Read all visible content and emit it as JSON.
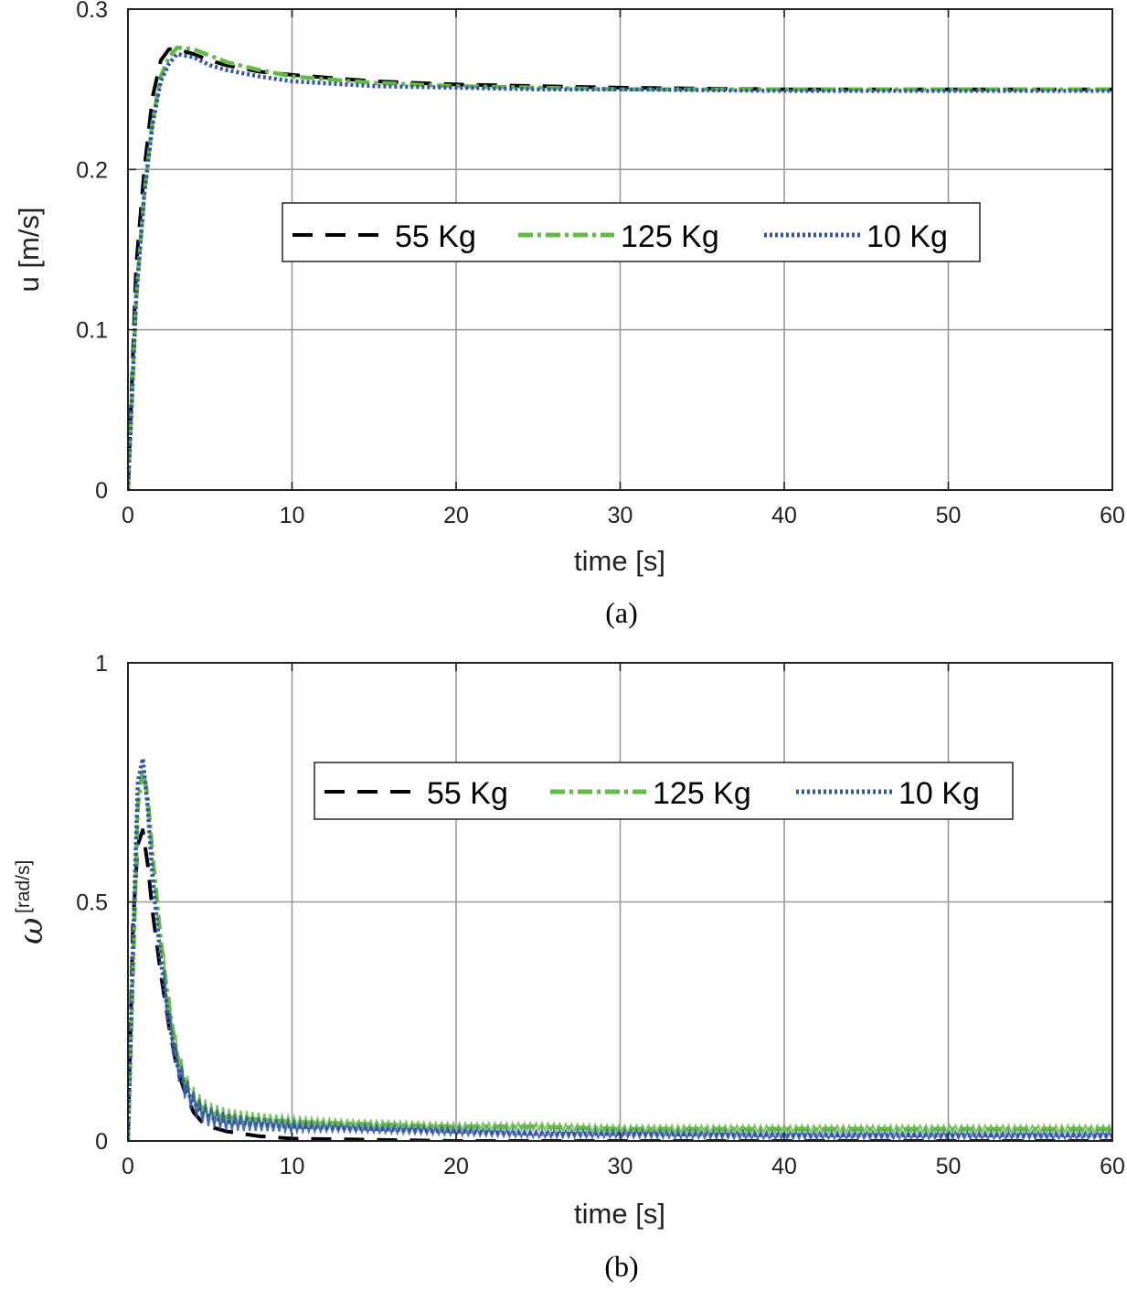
{
  "colors": {
    "55 Kg": "#000000",
    "125 Kg": "#62bb45",
    "10 Kg": "#3355a8",
    "grid": "#9a9a9a"
  },
  "chart_data": [
    {
      "type": "line",
      "panel": "(a)",
      "xlabel": "time [s]",
      "ylabel": "u [m/s]",
      "xlim": [
        0,
        60
      ],
      "ylim": [
        0,
        0.3
      ],
      "xticks": [
        "0",
        "10",
        "20",
        "30",
        "40",
        "50",
        "60"
      ],
      "yticks": [
        "0",
        "0.1",
        "0.2",
        "0.3"
      ],
      "grid": true,
      "legend": "center-right",
      "series": [
        {
          "name": "55 Kg",
          "style": "dashed",
          "x": [
            0,
            0.5,
            1,
            1.5,
            2,
            2.5,
            3,
            4,
            5,
            6,
            8,
            10,
            15,
            20,
            25,
            30,
            40,
            50,
            60
          ],
          "y": [
            0,
            0.14,
            0.2,
            0.245,
            0.268,
            0.275,
            0.275,
            0.272,
            0.268,
            0.265,
            0.261,
            0.259,
            0.255,
            0.253,
            0.252,
            0.251,
            0.25,
            0.25,
            0.25
          ]
        },
        {
          "name": "125 Kg",
          "style": "dashdot",
          "x": [
            0,
            0.5,
            1,
            1.5,
            2,
            2.5,
            3,
            4,
            5,
            6,
            8,
            10,
            15,
            20,
            25,
            30,
            40,
            50,
            60
          ],
          "y": [
            0,
            0.12,
            0.185,
            0.23,
            0.258,
            0.27,
            0.276,
            0.275,
            0.271,
            0.267,
            0.262,
            0.258,
            0.254,
            0.252,
            0.251,
            0.25,
            0.25,
            0.25,
            0.25
          ]
        },
        {
          "name": "10 Kg",
          "style": "dotted",
          "x": [
            0,
            0.5,
            1,
            1.5,
            2,
            2.5,
            3,
            4,
            5,
            6,
            8,
            10,
            15,
            20,
            25,
            30,
            40,
            50,
            60
          ],
          "y": [
            0,
            0.12,
            0.185,
            0.228,
            0.255,
            0.266,
            0.272,
            0.27,
            0.265,
            0.262,
            0.258,
            0.255,
            0.252,
            0.251,
            0.25,
            0.25,
            0.249,
            0.249,
            0.249
          ]
        }
      ]
    },
    {
      "type": "line",
      "panel": "(b)",
      "xlabel": "time [s]",
      "ylabel": "ω [rad/s]",
      "xlim": [
        0,
        60
      ],
      "ylim": [
        0,
        1
      ],
      "xticks": [
        "0",
        "10",
        "20",
        "30",
        "40",
        "50",
        "60"
      ],
      "yticks": [
        "0",
        "0.5",
        "1"
      ],
      "grid": true,
      "legend": "center-right",
      "series": [
        {
          "name": "55 Kg",
          "style": "dashed",
          "x": [
            0,
            0.3,
            0.6,
            0.9,
            1.2,
            1.5,
            2,
            2.5,
            3,
            3.5,
            4,
            4.5,
            5,
            5.5,
            6,
            8,
            10,
            20,
            30,
            40,
            50,
            60
          ],
          "y": [
            0,
            0.45,
            0.62,
            0.65,
            0.58,
            0.48,
            0.35,
            0.24,
            0.15,
            0.1,
            0.06,
            0.04,
            0.03,
            0.025,
            0.02,
            0.01,
            0.005,
            0.0,
            0.0,
            0.0,
            0.0,
            0.0
          ]
        },
        {
          "name": "125 Kg",
          "style": "dashdot",
          "band": 0.03,
          "x": [
            0,
            0.3,
            0.6,
            0.9,
            1.2,
            1.5,
            2,
            2.5,
            3,
            3.5,
            4,
            4.5,
            5,
            6,
            8,
            10,
            15,
            20,
            25,
            30,
            40,
            50,
            60
          ],
          "y": [
            0,
            0.35,
            0.7,
            0.78,
            0.72,
            0.6,
            0.42,
            0.28,
            0.18,
            0.12,
            0.09,
            0.07,
            0.06,
            0.05,
            0.045,
            0.04,
            0.035,
            0.03,
            0.03,
            0.025,
            0.025,
            0.025,
            0.025
          ]
        },
        {
          "name": "10 Kg",
          "style": "dotted",
          "band": 0.03,
          "x": [
            0,
            0.3,
            0.6,
            0.9,
            1.2,
            1.5,
            2,
            2.5,
            3,
            3.5,
            4,
            4.5,
            5,
            6,
            8,
            10,
            15,
            20,
            25,
            30,
            40,
            50,
            60
          ],
          "y": [
            0,
            0.4,
            0.75,
            0.8,
            0.7,
            0.55,
            0.38,
            0.25,
            0.16,
            0.11,
            0.08,
            0.06,
            0.05,
            0.04,
            0.035,
            0.03,
            0.025,
            0.02,
            0.015,
            0.015,
            0.012,
            0.012,
            0.012
          ]
        }
      ]
    }
  ],
  "figure": {
    "panel_a": {
      "xlabel": "time [s]",
      "ylabel": "u [m/s]",
      "caption": "(a)",
      "legend": {
        "items": [
          "55 Kg",
          "125 Kg",
          "10 Kg"
        ]
      },
      "xticks": [
        "0",
        "10",
        "20",
        "30",
        "40",
        "50",
        "60"
      ],
      "yticks": [
        "0",
        "0.1",
        "0.2",
        "0.3"
      ]
    },
    "panel_b": {
      "xlabel": "time [s]",
      "ylabel_symbol": "ω",
      "ylabel_unit": "[rad/s]",
      "caption": "(b)",
      "legend": {
        "items": [
          "55 Kg",
          "125 Kg",
          "10 Kg"
        ]
      },
      "xticks": [
        "0",
        "10",
        "20",
        "30",
        "40",
        "50",
        "60"
      ],
      "yticks": [
        "0",
        "0.5",
        "1"
      ]
    }
  }
}
